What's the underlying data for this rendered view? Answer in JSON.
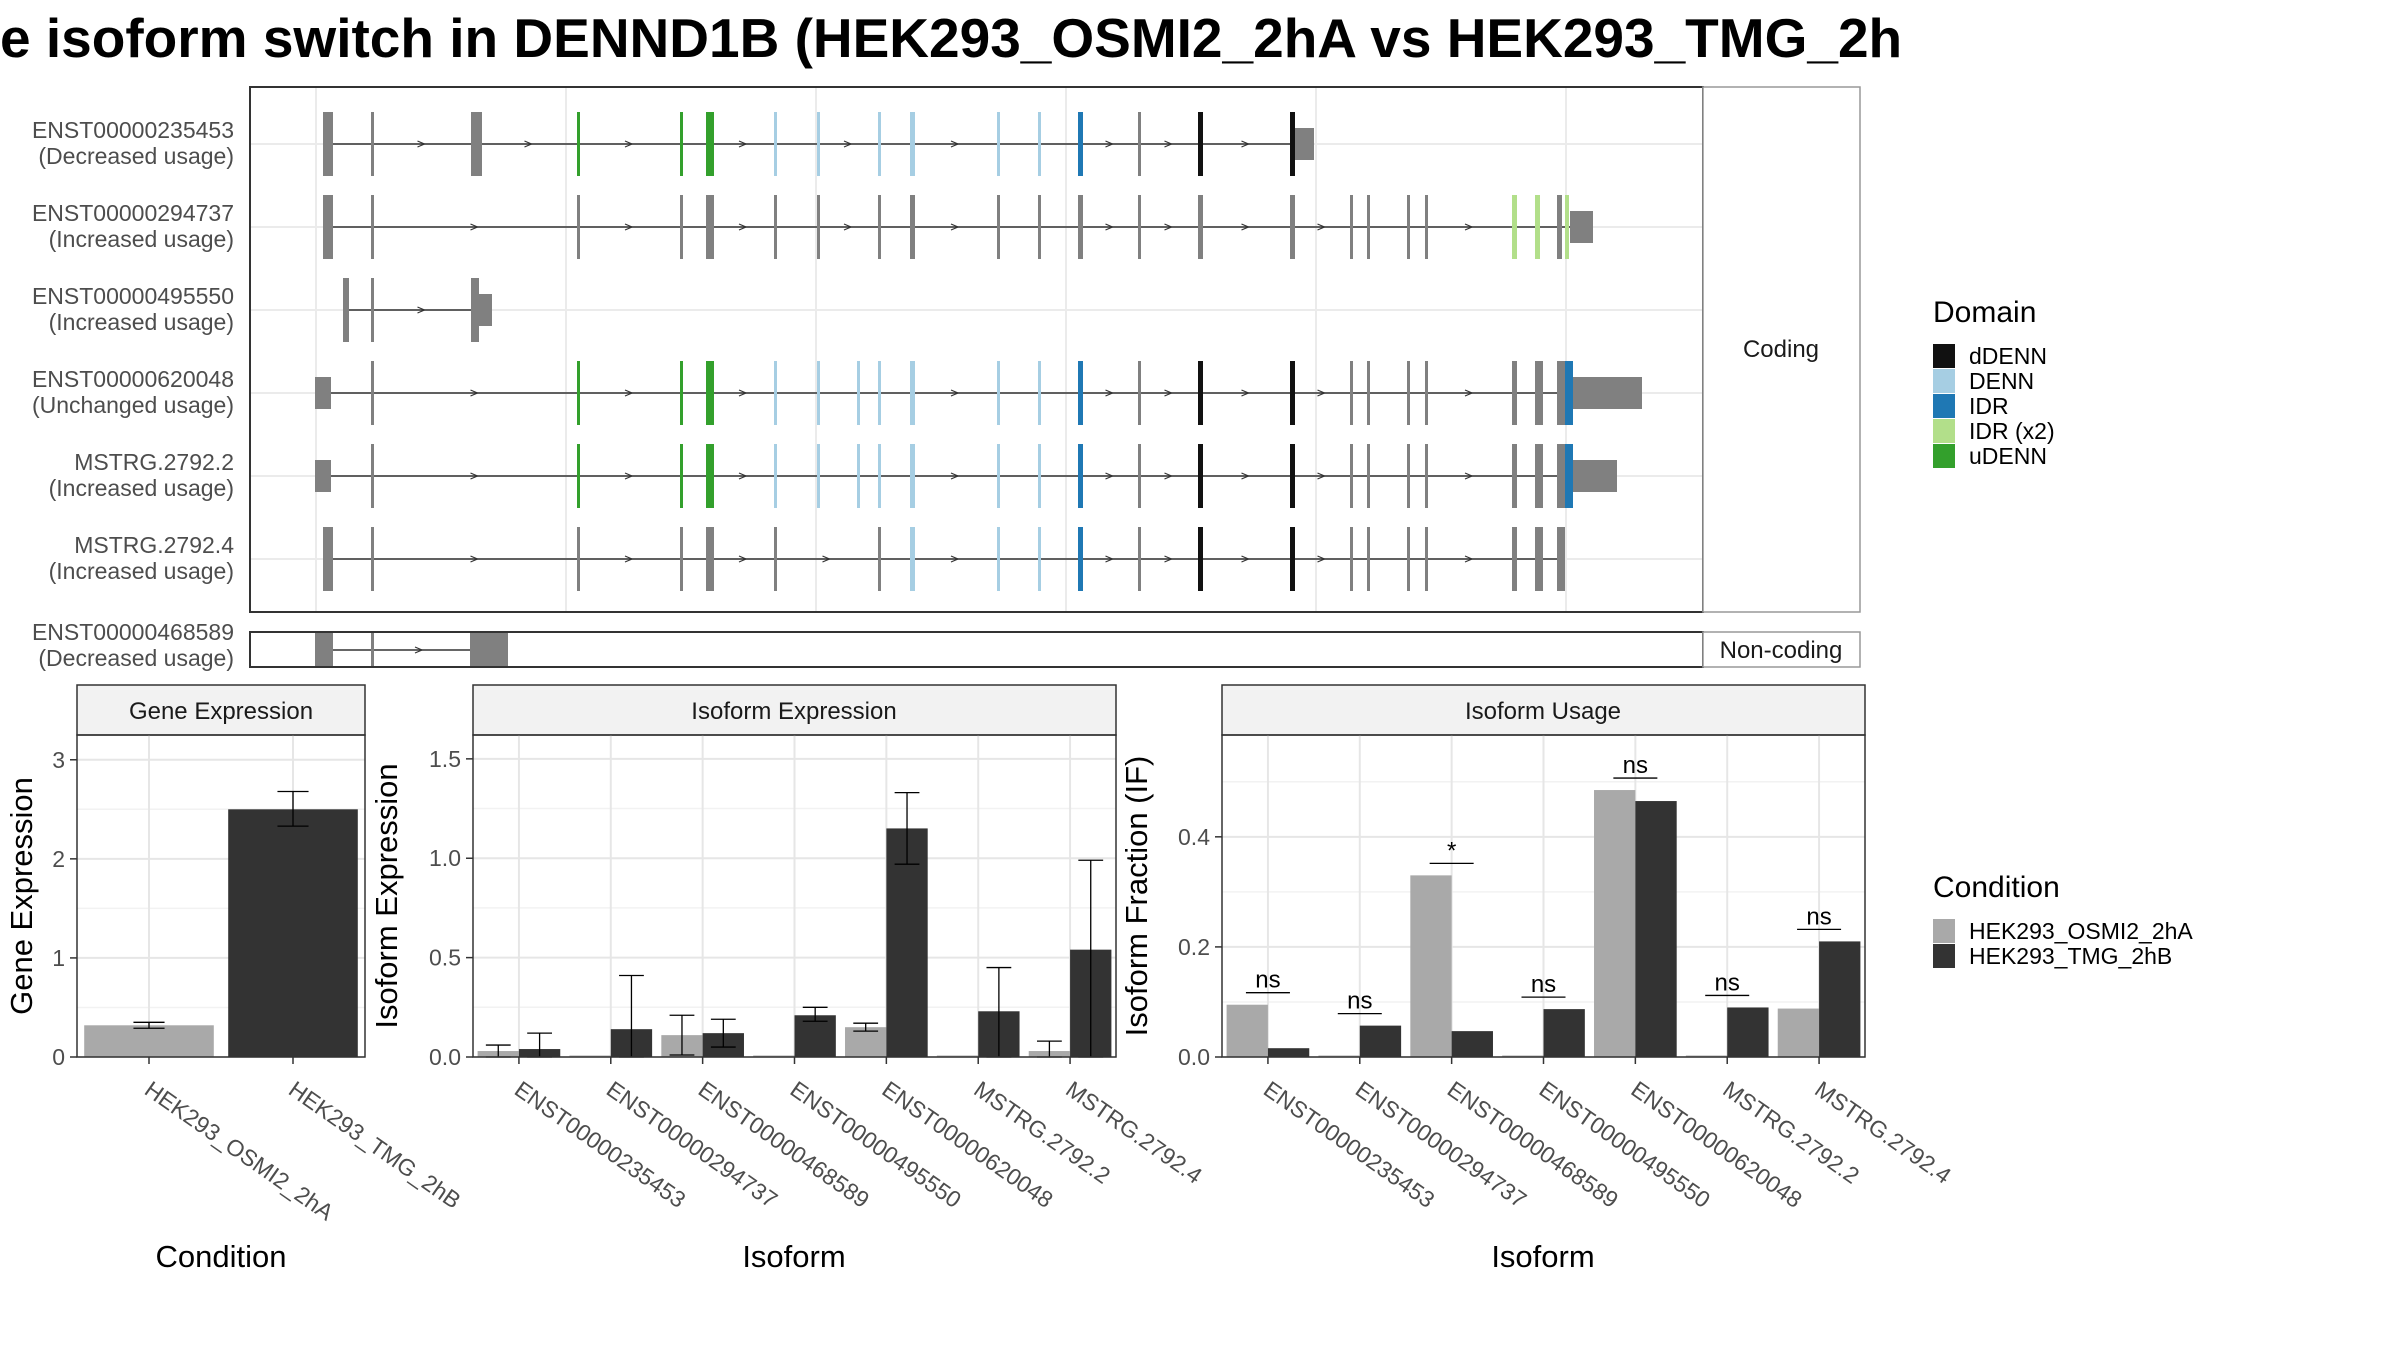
{
  "title": "e isoform switch in DENND1B (HEK293_OSMI2_2hA vs HEK293_TMG_2h",
  "structure": {
    "transcripts": [
      {
        "id": "ENST00000235453",
        "usage": "(Decreased usage)"
      },
      {
        "id": "ENST00000294737",
        "usage": "(Increased usage)"
      },
      {
        "id": "ENST00000495550",
        "usage": "(Increased usage)"
      },
      {
        "id": "ENST00000620048",
        "usage": "(Unchanged usage)"
      },
      {
        "id": "MSTRG.2792.2",
        "usage": "(Increased usage)"
      },
      {
        "id": "MSTRG.2792.4",
        "usage": "(Increased usage)"
      }
    ],
    "noncoding_transcripts": [
      {
        "id": "ENST00000468589",
        "usage": "(Decreased usage)"
      }
    ],
    "coding_label": "Coding",
    "noncoding_label": "Non-coding"
  },
  "domain_legend": {
    "title": "Domain",
    "items": [
      {
        "label": "dDENN",
        "color": "#111111"
      },
      {
        "label": "DENN",
        "color": "#a6cee3"
      },
      {
        "label": "IDR",
        "color": "#1f78b4"
      },
      {
        "label": "IDR (x2)",
        "color": "#b2df8a"
      },
      {
        "label": "uDENN",
        "color": "#33a02c"
      }
    ]
  },
  "condition_legend": {
    "title": "Condition",
    "items": [
      {
        "label": "HEK293_OSMI2_2hA",
        "color": "#a9a9a9"
      },
      {
        "label": "HEK293_TMG_2hB",
        "color": "#333333"
      }
    ]
  },
  "chart_data": [
    {
      "type": "bar",
      "title": "Gene Expression",
      "xlabel": "Condition",
      "ylabel": "Gene Expression",
      "ylim": [
        0,
        3.25
      ],
      "yticks": [
        0,
        1,
        2,
        3
      ],
      "categories": [
        "HEK293_OSMI2_2hA",
        "HEK293_TMG_2hB"
      ],
      "values": [
        0.32,
        2.5
      ],
      "error": [
        [
          0.29,
          0.35
        ],
        [
          2.33,
          2.68
        ]
      ]
    },
    {
      "type": "bar",
      "title": "Isoform Expression",
      "xlabel": "Isoform",
      "ylabel": "Isoform Expression",
      "ylim": [
        0,
        1.62
      ],
      "yticks": [
        0.0,
        0.5,
        1.0,
        1.5
      ],
      "categories": [
        "ENST00000235453",
        "ENST00000294737",
        "ENST00000468589",
        "ENST00000495550",
        "ENST00000620048",
        "MSTRG.2792.2",
        "MSTRG.2792.4"
      ],
      "series": [
        {
          "name": "HEK293_OSMI2_2hA",
          "values": [
            0.03,
            0.0,
            0.11,
            0.0,
            0.15,
            0.0,
            0.03
          ],
          "error": [
            [
              0.0,
              0.06
            ],
            [
              0.0,
              0.0
            ],
            [
              0.01,
              0.21
            ],
            [
              0.0,
              0.0
            ],
            [
              0.13,
              0.17
            ],
            [
              0.0,
              0.0
            ],
            [
              0.0,
              0.08
            ]
          ]
        },
        {
          "name": "HEK293_TMG_2hB",
          "values": [
            0.04,
            0.14,
            0.12,
            0.21,
            1.15,
            0.23,
            0.54
          ],
          "error": [
            [
              0.0,
              0.12
            ],
            [
              0.0,
              0.41
            ],
            [
              0.05,
              0.19
            ],
            [
              0.18,
              0.25
            ],
            [
              0.97,
              1.33
            ],
            [
              0.0,
              0.45
            ],
            [
              0.0,
              0.99
            ]
          ]
        }
      ]
    },
    {
      "type": "bar",
      "title": "Isoform Usage",
      "xlabel": "Isoform",
      "ylabel": "Isoform Fraction (IF)",
      "ylim": [
        0,
        0.585
      ],
      "yticks": [
        0.0,
        0.2,
        0.4
      ],
      "categories": [
        "ENST00000235453",
        "ENST00000294737",
        "ENST00000468589",
        "ENST00000495550",
        "ENST00000620048",
        "MSTRG.2792.2",
        "MSTRG.2792.4"
      ],
      "series": [
        {
          "name": "HEK293_OSMI2_2hA",
          "values": [
            0.095,
            0.0,
            0.33,
            0.0,
            0.485,
            0.0,
            0.088
          ]
        },
        {
          "name": "HEK293_TMG_2hB",
          "values": [
            0.016,
            0.057,
            0.047,
            0.087,
            0.465,
            0.09,
            0.21
          ]
        }
      ],
      "annotations": [
        {
          "category": "ENST00000235453",
          "text": "ns"
        },
        {
          "category": "ENST00000294737",
          "text": "ns"
        },
        {
          "category": "ENST00000468589",
          "text": "*"
        },
        {
          "category": "ENST00000495550",
          "text": "ns"
        },
        {
          "category": "ENST00000620048",
          "text": "ns"
        },
        {
          "category": "MSTRG.2792.2",
          "text": "ns"
        },
        {
          "category": "MSTRG.2792.4",
          "text": "ns"
        }
      ]
    }
  ]
}
